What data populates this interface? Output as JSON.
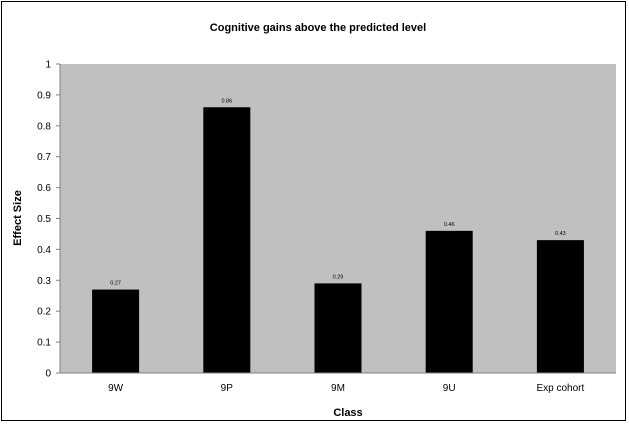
{
  "chart_data": {
    "type": "bar",
    "title": "Cognitive gains above the predicted level",
    "xlabel": "Class",
    "ylabel": "Effect Size",
    "categories": [
      "9W",
      "9P",
      "9M",
      "9U",
      "Exp cohort"
    ],
    "values": [
      0.27,
      0.86,
      0.29,
      0.46,
      0.43
    ],
    "data_labels": [
      "0.27",
      "0.86",
      "0.29",
      "0.46",
      "0.43"
    ],
    "ylim": [
      0,
      1
    ],
    "yticks": [
      "0",
      "0.1",
      "0.2",
      "0.3",
      "0.4",
      "0.5",
      "0.6",
      "0.7",
      "0.8",
      "0.9",
      "1"
    ],
    "grid": false,
    "legend": "none",
    "colors": {
      "plot_background": "#c0c0c0",
      "bar": "#000000",
      "axis": "#808080"
    }
  }
}
